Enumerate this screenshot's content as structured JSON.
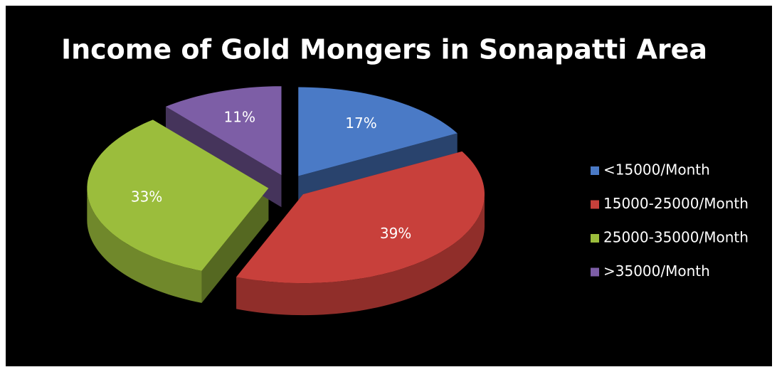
{
  "chart_data": {
    "type": "pie",
    "title": "Income of Gold Mongers in Sonapatti Area",
    "categories": [
      "<15000/Month",
      "15000-25000/Month",
      "25000-35000/Month",
      ">35000/Month"
    ],
    "values": [
      17,
      39,
      33,
      11
    ],
    "value_labels": [
      "17%",
      "39%",
      "33%",
      "11%"
    ],
    "colors": [
      "#4a7ac6",
      "#c8403b",
      "#9bbd3c",
      "#7d5ea6"
    ],
    "legend": "right"
  }
}
